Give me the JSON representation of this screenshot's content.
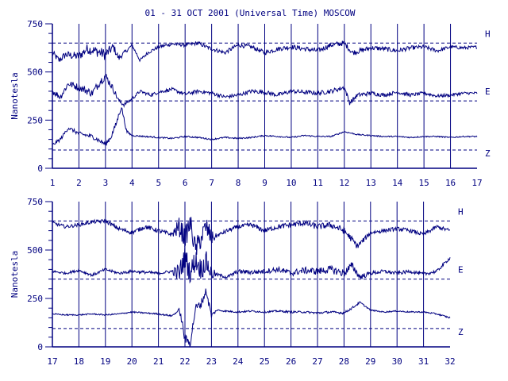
{
  "title": "01 - 31 OCT 2001 (Universal Time) MOSCOW",
  "ylabel": "Nanotesla",
  "colors": {
    "ink": "#000080",
    "background": "#ffffff"
  },
  "chart_data": [
    {
      "type": "line",
      "x_start": 1,
      "x_end": 17,
      "xticks": [
        "1",
        "2",
        "3",
        "4",
        "5",
        "6",
        "7",
        "8",
        "9",
        "10",
        "11",
        "12",
        "13",
        "14",
        "15",
        "16",
        "17"
      ],
      "ylim": [
        0,
        750
      ],
      "yticks": [
        "0",
        "250",
        "500",
        "750"
      ],
      "baselines": [
        650,
        350,
        95
      ],
      "series": [
        {
          "name": "H",
          "anchors": [
            [
              1,
              600
            ],
            [
              1.25,
              560
            ],
            [
              1.5,
              590
            ],
            [
              2,
              580
            ],
            [
              2.3,
              620
            ],
            [
              2.6,
              610
            ],
            [
              3,
              590
            ],
            [
              3.3,
              630
            ],
            [
              3.5,
              570
            ],
            [
              3.7,
              600
            ],
            [
              3.8,
              610
            ],
            [
              4,
              640
            ],
            [
              4.3,
              560
            ],
            [
              4.6,
              600
            ],
            [
              5,
              630
            ],
            [
              5.5,
              645
            ],
            [
              6,
              640
            ],
            [
              6.5,
              650
            ],
            [
              6.8,
              630
            ],
            [
              7,
              620
            ],
            [
              7.5,
              600
            ],
            [
              8,
              640
            ],
            [
              8.5,
              630
            ],
            [
              9,
              600
            ],
            [
              9.5,
              620
            ],
            [
              10,
              630
            ],
            [
              10.5,
              620
            ],
            [
              11,
              610
            ],
            [
              11.5,
              640
            ],
            [
              12,
              650
            ],
            [
              12.3,
              600
            ],
            [
              12.6,
              610
            ],
            [
              13,
              625
            ],
            [
              13.5,
              620
            ],
            [
              14,
              610
            ],
            [
              14.5,
              625
            ],
            [
              15,
              630
            ],
            [
              15.5,
              610
            ],
            [
              16,
              630
            ],
            [
              16.5,
              625
            ],
            [
              17,
              630
            ]
          ],
          "noise": [
            [
              1,
              16
            ],
            [
              3,
              30
            ],
            [
              3.8,
              8
            ],
            [
              12,
              14
            ],
            [
              17,
              8
            ]
          ]
        },
        {
          "name": "E",
          "anchors": [
            [
              1,
              400
            ],
            [
              1.3,
              370
            ],
            [
              1.6,
              440
            ],
            [
              2,
              420
            ],
            [
              2.5,
              390
            ],
            [
              2.8,
              450
            ],
            [
              3,
              480
            ],
            [
              3.3,
              410
            ],
            [
              3.5,
              350
            ],
            [
              3.7,
              330
            ],
            [
              4,
              360
            ],
            [
              4.3,
              400
            ],
            [
              4.7,
              380
            ],
            [
              5,
              395
            ],
            [
              5.5,
              410
            ],
            [
              6,
              385
            ],
            [
              6.5,
              400
            ],
            [
              7,
              390
            ],
            [
              7.5,
              370
            ],
            [
              8,
              380
            ],
            [
              8.5,
              400
            ],
            [
              9,
              395
            ],
            [
              9.5,
              380
            ],
            [
              10,
              400
            ],
            [
              10.5,
              395
            ],
            [
              11,
              390
            ],
            [
              11.5,
              400
            ],
            [
              12,
              420
            ],
            [
              12.2,
              340
            ],
            [
              12.5,
              380
            ],
            [
              13,
              390
            ],
            [
              13.5,
              380
            ],
            [
              14,
              395
            ],
            [
              14.5,
              380
            ],
            [
              15,
              390
            ],
            [
              15.5,
              375
            ],
            [
              16,
              380
            ],
            [
              16.5,
              390
            ],
            [
              17,
              390
            ]
          ],
          "noise": [
            [
              1,
              16
            ],
            [
              3,
              22
            ],
            [
              3.8,
              8
            ],
            [
              12,
              12
            ],
            [
              17,
              7
            ]
          ]
        },
        {
          "name": "Z",
          "anchors": [
            [
              1,
              120
            ],
            [
              1.3,
              150
            ],
            [
              1.6,
              210
            ],
            [
              2,
              180
            ],
            [
              2.5,
              165
            ],
            [
              3,
              125
            ],
            [
              3.2,
              160
            ],
            [
              3.4,
              230
            ],
            [
              3.6,
              320
            ],
            [
              3.8,
              190
            ],
            [
              4,
              170
            ],
            [
              4.5,
              165
            ],
            [
              5,
              160
            ],
            [
              5.5,
              155
            ],
            [
              6,
              165
            ],
            [
              6.5,
              160
            ],
            [
              7,
              150
            ],
            [
              7.5,
              160
            ],
            [
              8,
              155
            ],
            [
              8.5,
              160
            ],
            [
              9,
              170
            ],
            [
              9.5,
              165
            ],
            [
              10,
              160
            ],
            [
              10.5,
              170
            ],
            [
              11,
              165
            ],
            [
              11.5,
              165
            ],
            [
              12,
              190
            ],
            [
              12.5,
              175
            ],
            [
              13,
              170
            ],
            [
              13.5,
              165
            ],
            [
              14,
              165
            ],
            [
              14.5,
              160
            ],
            [
              15,
              165
            ],
            [
              15.5,
              165
            ],
            [
              16,
              160
            ],
            [
              16.5,
              165
            ],
            [
              17,
              165
            ]
          ],
          "noise": [
            [
              1,
              8
            ],
            [
              3.5,
              14
            ],
            [
              4,
              4
            ],
            [
              17,
              3
            ]
          ]
        }
      ]
    },
    {
      "type": "line",
      "x_start": 17,
      "x_end": 32,
      "xticks": [
        "17",
        "18",
        "19",
        "20",
        "21",
        "22",
        "23",
        "24",
        "25",
        "26",
        "27",
        "28",
        "29",
        "30",
        "31",
        "32"
      ],
      "ylim": [
        0,
        750
      ],
      "yticks": [
        "0",
        "250",
        "500",
        "750"
      ],
      "baselines": [
        650,
        350,
        95
      ],
      "series": [
        {
          "name": "H",
          "anchors": [
            [
              17,
              640
            ],
            [
              17.5,
              620
            ],
            [
              18,
              630
            ],
            [
              18.5,
              645
            ],
            [
              19,
              650
            ],
            [
              19.5,
              610
            ],
            [
              20,
              590
            ],
            [
              20.5,
              620
            ],
            [
              21,
              600
            ],
            [
              21.5,
              580
            ],
            [
              21.8,
              620
            ],
            [
              22,
              560
            ],
            [
              22.2,
              640
            ],
            [
              22.4,
              500
            ],
            [
              22.6,
              560
            ],
            [
              22.8,
              620
            ],
            [
              23,
              560
            ],
            [
              23.3,
              580
            ],
            [
              23.6,
              600
            ],
            [
              24,
              620
            ],
            [
              24.5,
              630
            ],
            [
              25,
              600
            ],
            [
              25.5,
              620
            ],
            [
              26,
              630
            ],
            [
              26.5,
              640
            ],
            [
              27,
              620
            ],
            [
              27.5,
              630
            ],
            [
              28,
              600
            ],
            [
              28.2,
              570
            ],
            [
              28.5,
              520
            ],
            [
              28.8,
              560
            ],
            [
              29,
              590
            ],
            [
              29.5,
              600
            ],
            [
              30,
              610
            ],
            [
              30.5,
              600
            ],
            [
              31,
              580
            ],
            [
              31.5,
              620
            ],
            [
              32,
              600
            ]
          ],
          "noise": [
            [
              17,
              8
            ],
            [
              21.5,
              12
            ],
            [
              21.8,
              55
            ],
            [
              22.9,
              55
            ],
            [
              23.2,
              10
            ],
            [
              28.3,
              18
            ],
            [
              29,
              10
            ],
            [
              32,
              10
            ]
          ]
        },
        {
          "name": "E",
          "anchors": [
            [
              17,
              390
            ],
            [
              17.5,
              380
            ],
            [
              18,
              395
            ],
            [
              18.5,
              370
            ],
            [
              19,
              400
            ],
            [
              19.5,
              380
            ],
            [
              20,
              390
            ],
            [
              20.5,
              385
            ],
            [
              21,
              380
            ],
            [
              21.5,
              390
            ],
            [
              21.8,
              380
            ],
            [
              22,
              470
            ],
            [
              22.2,
              380
            ],
            [
              22.4,
              450
            ],
            [
              22.6,
              400
            ],
            [
              22.8,
              440
            ],
            [
              23,
              380
            ],
            [
              23.3,
              370
            ],
            [
              23.6,
              360
            ],
            [
              24,
              390
            ],
            [
              24.5,
              385
            ],
            [
              25,
              390
            ],
            [
              25.5,
              400
            ],
            [
              26,
              380
            ],
            [
              26.5,
              395
            ],
            [
              27,
              390
            ],
            [
              27.5,
              400
            ],
            [
              28,
              380
            ],
            [
              28.3,
              420
            ],
            [
              28.6,
              360
            ],
            [
              29,
              380
            ],
            [
              29.5,
              390
            ],
            [
              30,
              380
            ],
            [
              30.5,
              390
            ],
            [
              31,
              375
            ],
            [
              31.5,
              390
            ],
            [
              32,
              460
            ]
          ],
          "noise": [
            [
              17,
              6
            ],
            [
              21.5,
              8
            ],
            [
              21.8,
              60
            ],
            [
              22.9,
              55
            ],
            [
              23.2,
              8
            ],
            [
              28.2,
              22
            ],
            [
              29,
              10
            ],
            [
              32,
              8
            ]
          ]
        },
        {
          "name": "Z",
          "anchors": [
            [
              17,
              170
            ],
            [
              17.5,
              165
            ],
            [
              18,
              165
            ],
            [
              18.5,
              170
            ],
            [
              19,
              165
            ],
            [
              19.5,
              170
            ],
            [
              20,
              180
            ],
            [
              20.5,
              175
            ],
            [
              21,
              170
            ],
            [
              21.5,
              160
            ],
            [
              21.8,
              190
            ],
            [
              22,
              40
            ],
            [
              22.2,
              20
            ],
            [
              22.4,
              200
            ],
            [
              22.6,
              220
            ],
            [
              22.8,
              290
            ],
            [
              23,
              160
            ],
            [
              23.2,
              190
            ],
            [
              23.5,
              185
            ],
            [
              24,
              180
            ],
            [
              24.5,
              185
            ],
            [
              25,
              180
            ],
            [
              25.5,
              185
            ],
            [
              26,
              180
            ],
            [
              26.5,
              180
            ],
            [
              27,
              175
            ],
            [
              27.5,
              180
            ],
            [
              28,
              175
            ],
            [
              28.3,
              200
            ],
            [
              28.6,
              230
            ],
            [
              29,
              190
            ],
            [
              29.5,
              180
            ],
            [
              30,
              185
            ],
            [
              30.5,
              180
            ],
            [
              31,
              180
            ],
            [
              31.5,
              170
            ],
            [
              32,
              150
            ]
          ],
          "noise": [
            [
              17,
              3
            ],
            [
              21.7,
              4
            ],
            [
              21.9,
              25
            ],
            [
              22.9,
              20
            ],
            [
              23.2,
              4
            ],
            [
              28.4,
              6
            ],
            [
              29,
              3
            ],
            [
              32,
              4
            ]
          ]
        }
      ]
    }
  ]
}
